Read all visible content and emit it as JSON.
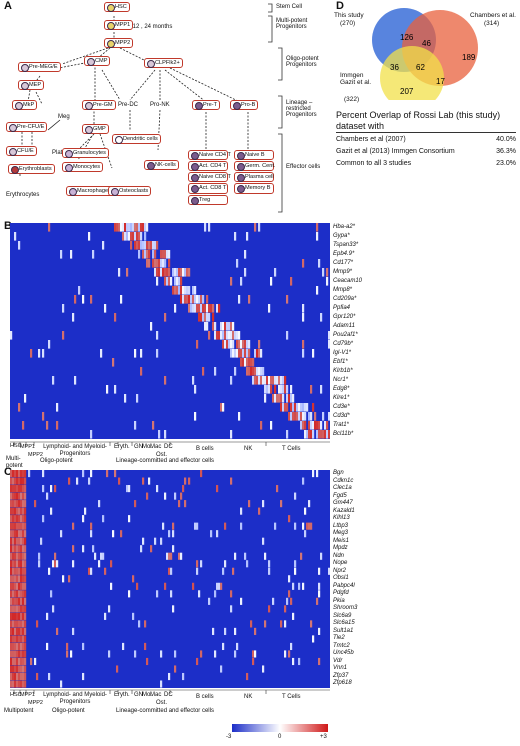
{
  "panels": {
    "a": "A",
    "b": "B",
    "c": "C",
    "d": "D"
  },
  "hierarchy": {
    "timepoints": "4, 12 , 24 months",
    "levels": [
      {
        "label": "Stem Cell"
      },
      {
        "label": "Multi-potent Progenitors"
      },
      {
        "label": "Oligo-potent Progenitors"
      },
      {
        "label": "Lineage – restricted Progenitors"
      },
      {
        "label": "Effector cells"
      }
    ],
    "nodes": {
      "hsc": "HSC",
      "mpp1": "MPP1",
      "mpp2": "MPP2",
      "premege": "Pre-MEG/E",
      "cmp": "CMP",
      "clp": "CLPFlk2+",
      "mep": "MEP",
      "mkp": "MkP",
      "pregm": "Pre-GM",
      "gmp": "GMP",
      "precfue": "Pre-CFU/E",
      "cfue": "CFU/E",
      "predc": "Pre-DC",
      "prenk": "Pro-NK",
      "pret": "Pre-T",
      "preb": "Pro-B"
    },
    "effectors": {
      "meg": "Meg",
      "platelets": "Platelets",
      "erythroblasts": "Erythroblasts",
      "erythrocytes": "Erythrocytes",
      "granulocytes": "Granulocytes",
      "monocytes": "Monocytes",
      "macrophages": "Macrophages",
      "osteoclasts": "Osteoclasts",
      "dc": "Dendritic cells",
      "nk": "NK-cells"
    },
    "tcells": [
      "Naive CD4 T",
      "Act. CD4 T",
      "Naive CD8 T",
      "Act. CD8 T",
      "Treg"
    ],
    "bcells": [
      "Naive B",
      "Germ. Cent.",
      "Plasma cell",
      "Memory B"
    ]
  },
  "venn": {
    "sets": [
      {
        "name": "This study",
        "count": "(270)",
        "color": "#3b6fd8"
      },
      {
        "name": "Chambers et al.",
        "count": "(314)",
        "color": "#e8603c"
      },
      {
        "name": "Immgen Gazit et al.",
        "count": "(322)",
        "color": "#f2e04a"
      }
    ],
    "regions": {
      "a_only": "126",
      "b_only": "189",
      "c_only": "207",
      "ab": "46",
      "ac": "36",
      "bc": "17",
      "abc": "62"
    }
  },
  "overlap_table": {
    "title": "Percent Overlap of Rossi Lab (this study) dataset with",
    "rows": [
      {
        "label": "Chambers et al (2007)",
        "value": "40.0%"
      },
      {
        "label": "Gazit et al (2013) Immgen Consortium",
        "value": "36.3%"
      },
      {
        "label": "Common to all 3 studies",
        "value": "23.0%"
      }
    ]
  },
  "heatmap_b": {
    "genes": [
      "Hba-a2*",
      "Gypa*",
      "Tspan33*",
      "Epb4.9*",
      "Cd177*",
      "Mmp9*",
      "Ceacam10",
      "Mmp8*",
      "Cd209a*",
      "Ppfia4",
      "Gpr120*",
      "Adam11",
      "Pou2af1*",
      "Cd79b*",
      "Igl-V1*",
      "Ebf1*",
      "Klrb1b*",
      "Ncr1*",
      "Edg8*",
      "Klre1*",
      "Cd3e*",
      "Cd3d*",
      "Trat1*",
      "Bcl11b*"
    ]
  },
  "heatmap_c": {
    "genes": [
      "Bgn",
      "Cdkn1c",
      "Clec1a",
      "Fgd5",
      "Gm447",
      "Kazald1",
      "Klhl13",
      "Ltbp3",
      "Meg3",
      "Meis1",
      "Mpdz",
      "Ndn",
      "Nope",
      "Npr2",
      "Obsl1",
      "Pabpc4l",
      "Pdgfd",
      "Pkia",
      "Shroom3",
      "Slc6a9",
      "Slc6a15",
      "Sult1a1",
      "Tle2",
      "Tmtc2",
      "Unc45b",
      "Vdr",
      "Vnn1",
      "Zfp37",
      "Zfp618"
    ]
  },
  "axis_groups": {
    "hsc": "HSC",
    "mpp1": "MPP1",
    "mpp2": "MPP2",
    "lymph_myeloid": "Lymphoid- and Myeloid- Progenitors",
    "eryth": "Eryth.",
    "gn": "GN",
    "mo": "Mo.",
    "mac": "Mac",
    "ost": "Ost.",
    "dc": "DC",
    "bcells": "B cells",
    "nk": "NK",
    "tcells": "T Cells",
    "multipotent": "Multi-potent",
    "multipotent_c": "Multipotent",
    "oligo": "Oligo-potent",
    "lineage": "Lineage-committed and effector cells"
  },
  "colorbar": {
    "min": "-3",
    "mid": "0",
    "max": "+3",
    "colors": [
      "#1c2ec8",
      "#ffffff",
      "#d01818"
    ]
  }
}
